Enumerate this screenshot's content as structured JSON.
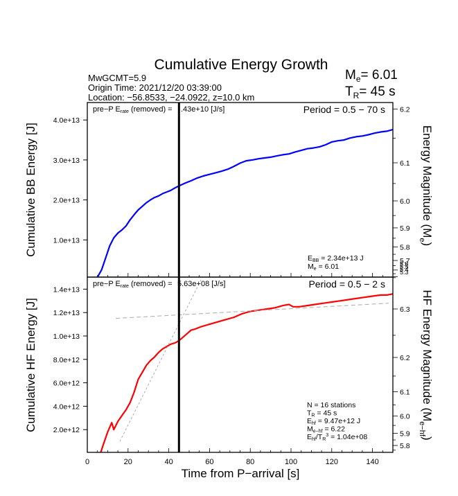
{
  "header": {
    "title": "Cumulative Energy Growth",
    "info_lines": [
      "MwGCMT=5.9",
      "Origin Time: 2021/12/20 03:39:00",
      "Location: −56.8533, −24.0922, z=10.0 km"
    ],
    "me_label": "M",
    "me_sub": "e",
    "me_value": "= 6.01",
    "tr_label": "T",
    "tr_sub": "R",
    "tr_value": "= 45 s"
  },
  "chart_data": [
    {
      "type": "line",
      "panel": "top",
      "title": "",
      "xlabel": "",
      "ylabel": "Cumulative BB Energy [J]",
      "y2label": "Energy Magnitude (M",
      "y2label_sub": "e",
      "xlim": [
        0,
        150
      ],
      "ylim": [
        700000000000.0,
        43500000000000.0
      ],
      "yticks": [
        10000000000000.0,
        20000000000000.0,
        30000000000000.0,
        40000000000000.0
      ],
      "ytick_labels": [
        "1.0e+13",
        "2.0e+13",
        "3.0e+13",
        "4.0e+13"
      ],
      "y2ticks": [
        5.7,
        5.8,
        5.9,
        6.0,
        6.1,
        6.2
      ],
      "y2tick_labels": [
        "5.7",
        "5.8",
        "5.9",
        "6.0",
        "6.1",
        "6.2"
      ],
      "y2tick_extra_labels": [
        "5.6",
        "5.5",
        "5.4",
        "5.3"
      ],
      "series": [
        {
          "name": "BB cumulative energy",
          "color": "#0000ff",
          "x": [
            5,
            7,
            9,
            11,
            13,
            15,
            17,
            19,
            21,
            23,
            25,
            27,
            29,
            31,
            33,
            35,
            37,
            39,
            41,
            43,
            45,
            48,
            51,
            54,
            57,
            60,
            63,
            66,
            69,
            72,
            75,
            78,
            81,
            84,
            87,
            90,
            93,
            96,
            99,
            102,
            105,
            108,
            111,
            114,
            117,
            120,
            123,
            126,
            129,
            132,
            135,
            138,
            141,
            144,
            147,
            150
          ],
          "y": [
            700000000000.0,
            2500000000000.0,
            5500000000000.0,
            8500000000000.0,
            10500000000000.0,
            11700000000000.0,
            12500000000000.0,
            13500000000000.0,
            15000000000000.0,
            16300000000000.0,
            17500000000000.0,
            18400000000000.0,
            19300000000000.0,
            20000000000000.0,
            20600000000000.0,
            21000000000000.0,
            21600000000000.0,
            22000000000000.0,
            22400000000000.0,
            23000000000000.0,
            23500000000000.0,
            24200000000000.0,
            24800000000000.0,
            25500000000000.0,
            26000000000000.0,
            26400000000000.0,
            26800000000000.0,
            27200000000000.0,
            27700000000000.0,
            28400000000000.0,
            29200000000000.0,
            29800000000000.0,
            30000000000000.0,
            30300000000000.0,
            30500000000000.0,
            30700000000000.0,
            31000000000000.0,
            31300000000000.0,
            31500000000000.0,
            32000000000000.0,
            32400000000000.0,
            32800000000000.0,
            33000000000000.0,
            33300000000000.0,
            33800000000000.0,
            34500000000000.0,
            34800000000000.0,
            35000000000000.0,
            35500000000000.0,
            35800000000000.0,
            36000000000000.0,
            36300000000000.0,
            36700000000000.0,
            37000000000000.0,
            37200000000000.0,
            37600000000000.0
          ]
        }
      ],
      "vline_x": 45,
      "annotations": {
        "prep_label": "pre−P E",
        "prep_sub": "rate",
        "prep_rest": " (removed) = ",
        "prep_value": ".43e+10 [J/s]",
        "period": "Period = 0.5 − 70 s",
        "ebb_label": "E",
        "ebb_sub": "BB",
        "ebb_value": " = 2.34e+13 J",
        "me_label": "M",
        "me_sub": "e",
        "me_value": " = 6.01"
      }
    },
    {
      "type": "line",
      "panel": "bottom",
      "title": "",
      "xlabel": "Time from P−arrival [s]",
      "ylabel": "Cumulative HF Energy [J]",
      "y2label": "HF Energy Magnitude (M",
      "y2label_sub": "e−hf",
      "xlim": [
        0,
        150
      ],
      "ylim": [
        0,
        15000000000000.0
      ],
      "xticks": [
        0,
        20,
        40,
        60,
        80,
        100,
        120,
        140
      ],
      "xtick_labels": [
        "0",
        "20",
        "40",
        "60",
        "80",
        "100",
        "120",
        "140"
      ],
      "yticks": [
        2000000000000.0,
        4000000000000.0,
        6000000000000.0,
        8000000000000.0,
        10000000000000.0,
        12000000000000.0,
        14000000000000.0
      ],
      "ytick_labels": [
        "2.0e+12",
        "4.0e+12",
        "6.0e+12",
        "8.0e+12",
        "1.0e+13",
        "1.2e+13",
        "1.4e+13"
      ],
      "y2ticks": [
        5.8,
        5.9,
        6.0,
        6.1,
        6.2,
        6.3
      ],
      "y2tick_labels": [
        "5.8",
        "5.9",
        "6.0",
        "6.1",
        "6.2",
        "6.3"
      ],
      "series": [
        {
          "name": "HF cumulative energy",
          "color": "#ff0000",
          "x": [
            6.5,
            8,
            10,
            12,
            13,
            15,
            17,
            19,
            21,
            23,
            25,
            27,
            29,
            31,
            33,
            35,
            37,
            39,
            41,
            43,
            45,
            47,
            49,
            51,
            53,
            56,
            60,
            64,
            68,
            72,
            76,
            80,
            84,
            88,
            92,
            96,
            99,
            101,
            104,
            108,
            112,
            116,
            120,
            124,
            128,
            132,
            136,
            140,
            144,
            147,
            150
          ],
          "y": [
            0.0,
            800000000000.0,
            1800000000000.0,
            2600000000000.0,
            2000000000000.0,
            2700000000000.0,
            3200000000000.0,
            3700000000000.0,
            4300000000000.0,
            5200000000000.0,
            6300000000000.0,
            6900000000000.0,
            7500000000000.0,
            7900000000000.0,
            8200000000000.0,
            8600000000000.0,
            8900000000000.0,
            9100000000000.0,
            9300000000000.0,
            9400000000000.0,
            9600000000000.0,
            9900000000000.0,
            10200000000000.0,
            10500000000000.0,
            10600000000000.0,
            10800000000000.0,
            11000000000000.0,
            11200000000000.0,
            11400000000000.0,
            11600000000000.0,
            11900000000000.0,
            12100000000000.0,
            12200000000000.0,
            12300000000000.0,
            12400000000000.0,
            12600000000000.0,
            12700000000000.0,
            12500000000000.0,
            12500000000000.0,
            12600000000000.0,
            12700000000000.0,
            12800000000000.0,
            12900000000000.0,
            13000000000000.0,
            13100000000000.0,
            13200000000000.0,
            13300000000000.0,
            13400000000000.0,
            13500000000000.0,
            13500000000000.0,
            13600000000000.0
          ]
        },
        {
          "name": "fit line early",
          "color": "#aaaaaa",
          "style": "dotted",
          "x": [
            16,
            57
          ],
          "y": [
            1000000000000.0,
            15200000000000.0
          ]
        },
        {
          "name": "fit line late",
          "color": "#aaaaaa",
          "style": "dashed",
          "x": [
            14,
            148
          ],
          "y": [
            11500000000000.0,
            12800000000000.0
          ]
        }
      ],
      "vline_x": 45,
      "annotations": {
        "prep_label": "pre−P E",
        "prep_sub": "rate",
        "prep_rest": " (removed) = ",
        "prep_value": "5.63e+08 [J/s]",
        "period": "Period = 0.5 − 2 s",
        "stats": [
          {
            "label": "N = 16 stations",
            "sub": "",
            "rest": "",
            "sup": "",
            "tail": ""
          },
          {
            "label": "T",
            "sub": "R",
            "rest": " = 45  s",
            "sup": "",
            "tail": ""
          },
          {
            "label": "E",
            "sub": "hf",
            "rest": " = 9.47e+12 J",
            "sup": "",
            "tail": ""
          },
          {
            "label": "M",
            "sub": "e−hf",
            "rest": " = 6.22",
            "sup": "",
            "tail": ""
          },
          {
            "label": "E",
            "sub": "hf",
            "rest": "/T",
            "sup": "3",
            "tail": " =  1.04e+08",
            "sub2": "R"
          }
        ]
      }
    }
  ]
}
